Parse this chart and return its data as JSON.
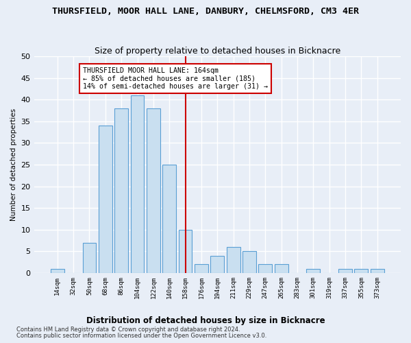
{
  "title": "THURSFIELD, MOOR HALL LANE, DANBURY, CHELMSFORD, CM3 4ER",
  "subtitle": "Size of property relative to detached houses in Bicknacre",
  "xlabel_bottom": "Distribution of detached houses by size in Bicknacre",
  "ylabel": "Number of detached properties",
  "bin_labels": [
    "14sqm",
    "32sqm",
    "50sqm",
    "68sqm",
    "86sqm",
    "104sqm",
    "122sqm",
    "140sqm",
    "158sqm",
    "176sqm",
    "194sqm",
    "211sqm",
    "229sqm",
    "247sqm",
    "265sqm",
    "283sqm",
    "301sqm",
    "319sqm",
    "337sqm",
    "355sqm",
    "373sqm"
  ],
  "bar_heights": [
    1,
    0,
    7,
    34,
    38,
    41,
    38,
    25,
    10,
    2,
    4,
    6,
    5,
    2,
    2,
    0,
    1,
    0,
    1,
    1,
    1
  ],
  "bar_color": "#c9dff0",
  "bar_edge_color": "#5a9fd4",
  "ylim": [
    0,
    50
  ],
  "yticks": [
    0,
    5,
    10,
    15,
    20,
    25,
    30,
    35,
    40,
    45,
    50
  ],
  "vline_x": 8.0,
  "vline_color": "#cc0000",
  "annotation_text": "THURSFIELD MOOR HALL LANE: 164sqm\n← 85% of detached houses are smaller (185)\n14% of semi-detached houses are larger (31) →",
  "footer_line1": "Contains HM Land Registry data © Crown copyright and database right 2024.",
  "footer_line2": "Contains public sector information licensed under the Open Government Licence v3.0.",
  "background_color": "#e8eef7",
  "plot_background": "#e8eef7",
  "grid_color": "#ffffff",
  "title_fontsize": 9.5,
  "subtitle_fontsize": 9
}
